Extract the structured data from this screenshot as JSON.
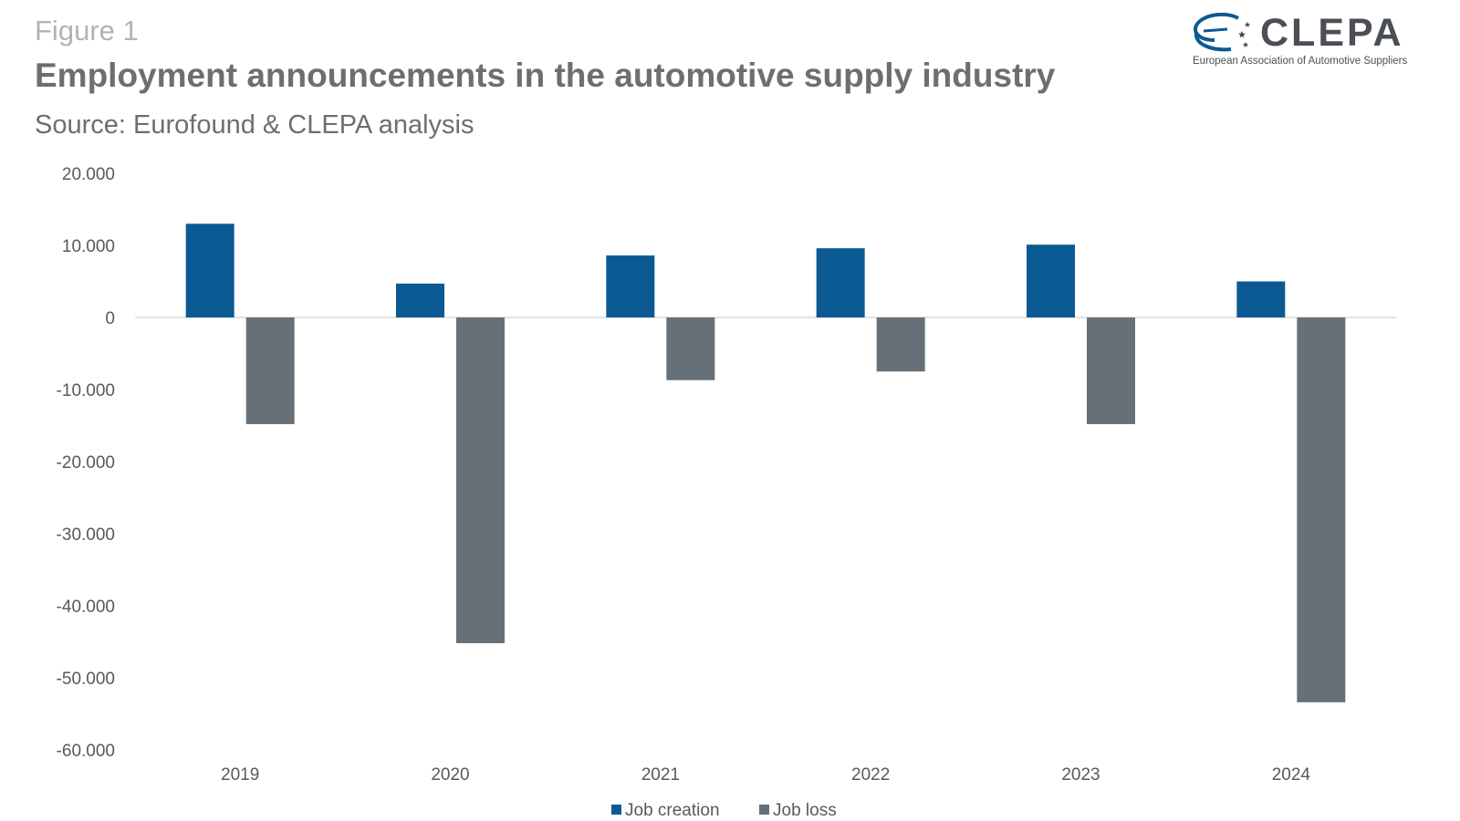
{
  "header": {
    "figure_label": "Figure 1",
    "title": "Employment announcements in the automotive supply industry",
    "subtitle": "Source: Eurofound & CLEPA analysis"
  },
  "logo": {
    "word": "CLEPA",
    "tagline": "European Association of Automotive Suppliers",
    "icon": "clepa-swoosh-logo"
  },
  "colors": {
    "job_creation": "#0b5a93",
    "job_loss": "#677077",
    "axis_text": "#595959",
    "zero_line": "#d9d9d9"
  },
  "chart_data": {
    "type": "bar",
    "categories": [
      "2019",
      "2020",
      "2021",
      "2022",
      "2023",
      "2024"
    ],
    "series": [
      {
        "name": "Job creation",
        "values": [
          13000,
          4700,
          8600,
          9600,
          10100,
          5000
        ]
      },
      {
        "name": "Job loss",
        "values": [
          -14800,
          -45200,
          -8700,
          -7500,
          -14800,
          -53400
        ]
      }
    ],
    "ylim": [
      -60000,
      20000
    ],
    "ytick_values": [
      20000,
      10000,
      0,
      -10000,
      -20000,
      -30000,
      -40000,
      -50000,
      -60000
    ],
    "ytick_labels": [
      "20.000",
      "10.000",
      "0",
      "-10.000",
      "-20.000",
      "-30.000",
      "-40.000",
      "-50.000",
      "-60.000"
    ],
    "grid": false,
    "legend": "bottom-center"
  }
}
